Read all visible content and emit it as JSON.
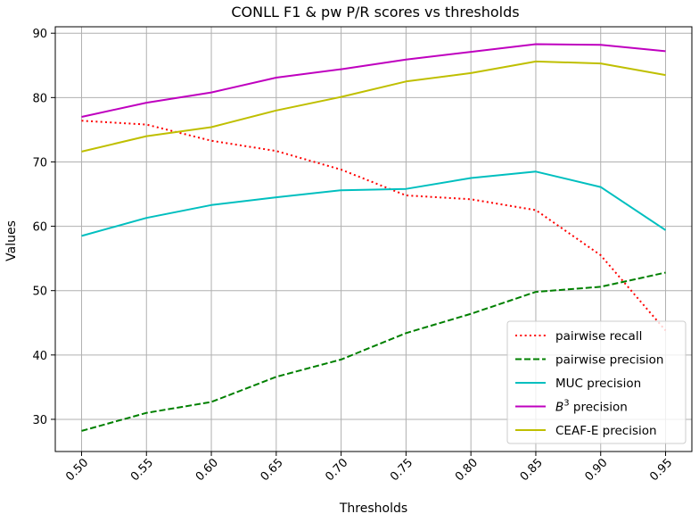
{
  "chart_data": {
    "type": "line",
    "title": "CONLL F1 & pw P/R scores vs thresholds",
    "xlabel": "Thresholds",
    "ylabel": "Values",
    "x": [
      0.5,
      0.55,
      0.6,
      0.65,
      0.7,
      0.75,
      0.8,
      0.85,
      0.9,
      0.95
    ],
    "x_tick_labels": [
      "0.50",
      "0.55",
      "0.60",
      "0.65",
      "0.70",
      "0.75",
      "0.80",
      "0.85",
      "0.90",
      "0.95"
    ],
    "y_ticks": [
      30,
      40,
      50,
      60,
      70,
      80,
      90
    ],
    "ylim": [
      25,
      91
    ],
    "grid": true,
    "legend_position": "bottom-right",
    "series": [
      {
        "name": "pairwise recall",
        "color": "#ff0000",
        "style": "dotted",
        "values": [
          76.4,
          75.8,
          73.3,
          71.7,
          68.8,
          64.8,
          64.2,
          62.5,
          55.5,
          43.8
        ]
      },
      {
        "name": "pairwise precision",
        "color": "#008000",
        "style": "dashed",
        "values": [
          28.2,
          31.0,
          32.7,
          36.6,
          39.3,
          43.4,
          46.4,
          49.8,
          50.6,
          52.8
        ]
      },
      {
        "name": "MUC precision",
        "color": "#00bfbf",
        "style": "solid",
        "values": [
          58.5,
          61.3,
          63.3,
          64.5,
          65.6,
          65.8,
          67.5,
          68.5,
          66.1,
          59.4
        ]
      },
      {
        "name": "B3 precision",
        "name_base": "B",
        "name_sup": "3",
        "name_rest": " precision",
        "color": "#bf00bf",
        "style": "solid",
        "values": [
          77.0,
          79.2,
          80.8,
          83.1,
          84.4,
          85.9,
          87.1,
          88.3,
          88.2,
          87.2
        ]
      },
      {
        "name": "CEAF-E precision",
        "color": "#bfbf00",
        "style": "solid",
        "values": [
          71.6,
          74.0,
          75.4,
          78.0,
          80.1,
          82.5,
          83.8,
          85.6,
          85.3,
          83.5
        ]
      }
    ]
  }
}
